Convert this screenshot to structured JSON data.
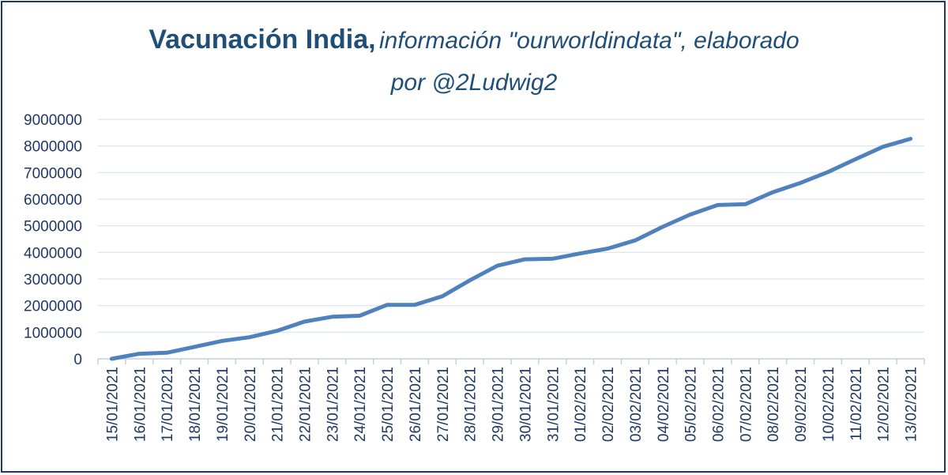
{
  "title": {
    "main": "Vacunación India,",
    "sub_line1": "información \"ourworldindata\", elaborado",
    "sub_line2": "por @2Ludwig2"
  },
  "colors": {
    "line": "#4f81bd",
    "grid": "#d9e2ef",
    "text": "#1f3864",
    "title": "#1f4e79"
  },
  "chart_data": {
    "type": "line",
    "title": "Vacunación India, información \"ourworldindata\", elaborado por @2Ludwig2",
    "xlabel": "",
    "ylabel": "",
    "ylim": [
      0,
      9000000
    ],
    "yticks": [
      "0",
      "1000000",
      "2000000",
      "3000000",
      "4000000",
      "5000000",
      "6000000",
      "7000000",
      "8000000",
      "9000000"
    ],
    "grid": "horizontal",
    "legend": "none",
    "categories": [
      "15/01/2021",
      "16/01/2021",
      "17/01/2021",
      "18/01/2021",
      "19/01/2021",
      "20/01/2021",
      "21/01/2021",
      "22/01/2021",
      "23/01/2021",
      "24/01/2021",
      "25/01/2021",
      "26/01/2021",
      "27/01/2021",
      "28/01/2021",
      "29/01/2021",
      "30/01/2021",
      "31/01/2021",
      "01/02/2021",
      "02/02/2021",
      "03/02/2021",
      "04/02/2021",
      "05/02/2021",
      "06/02/2021",
      "07/02/2021",
      "08/02/2021",
      "09/02/2021",
      "10/02/2021",
      "11/02/2021",
      "12/02/2021",
      "13/02/2021"
    ],
    "series": [
      {
        "values": [
          0,
          190000,
          230000,
          450000,
          670000,
          810000,
          1050000,
          1400000,
          1580000,
          1620000,
          2030000,
          2030000,
          2350000,
          2950000,
          3500000,
          3740000,
          3760000,
          3960000,
          4140000,
          4450000,
          4960000,
          5420000,
          5780000,
          5810000,
          6260000,
          6610000,
          7020000,
          7500000,
          7970000,
          8270000
        ]
      }
    ]
  }
}
